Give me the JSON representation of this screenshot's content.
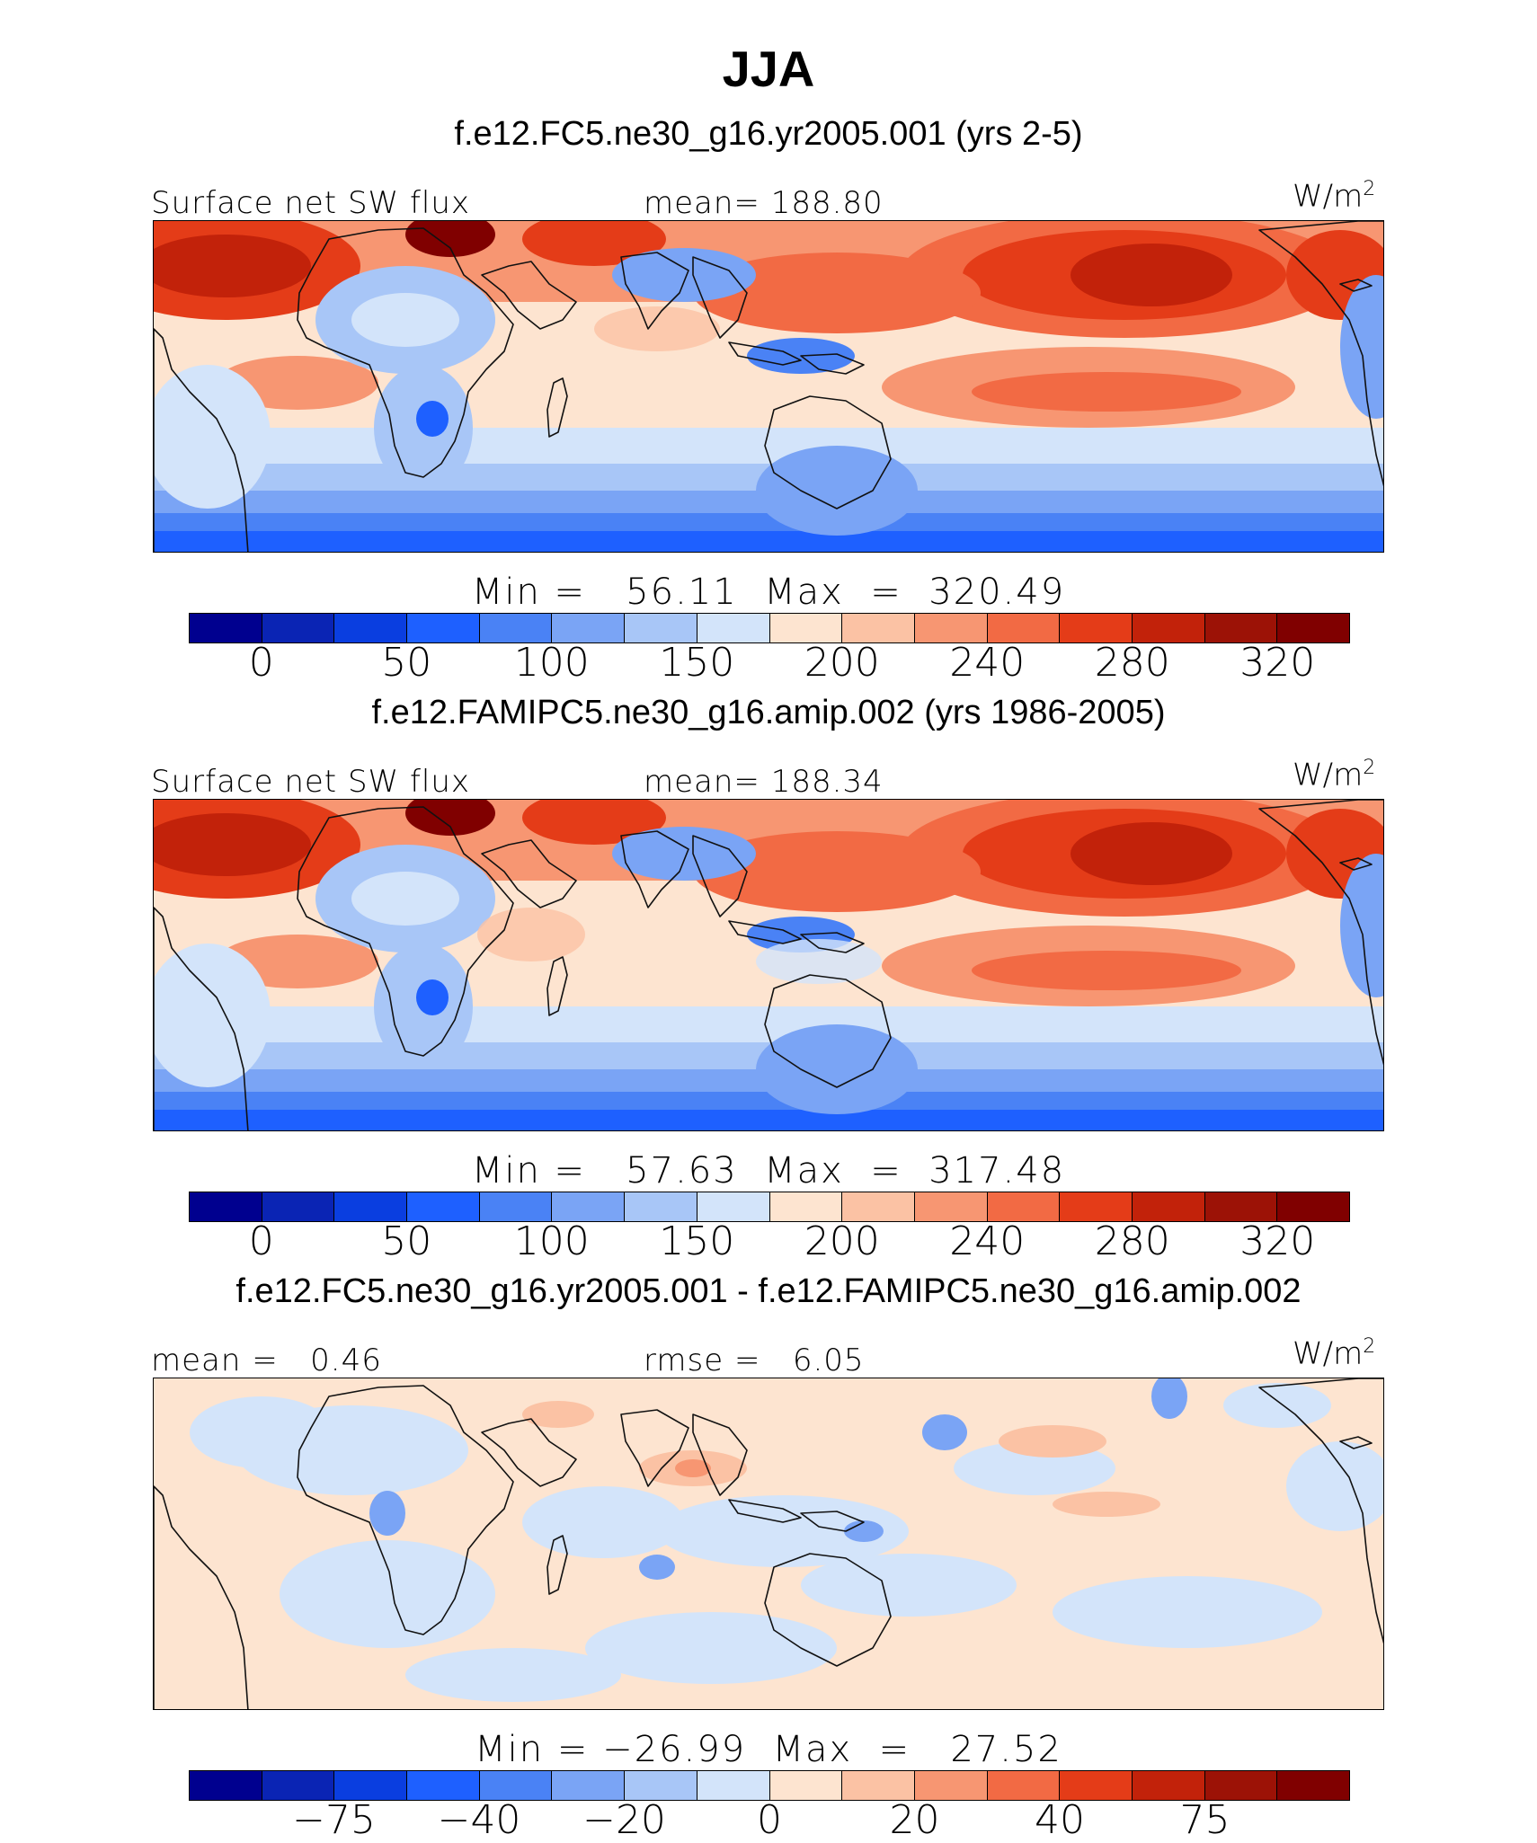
{
  "title": "JJA",
  "units_base": "W/m",
  "units_exp": "2",
  "panels": [
    {
      "subtitle": "f.e12.FC5.ne30_g16.yr2005.001 (yrs 2-5)",
      "left_label": "Surface net SW flux",
      "center_label": "mean= 188.80",
      "minmax": "Min =   56.11  Max  =  320.49",
      "ticks": [
        "0",
        "50",
        "100",
        "150",
        "200",
        "240",
        "280",
        "320"
      ],
      "field": "abs-a"
    },
    {
      "subtitle": "f.e12.FAMIPC5.ne30_g16.amip.002 (yrs 1986-2005)",
      "left_label": "Surface net SW flux",
      "center_label": "mean= 188.34",
      "minmax": "Min =   57.63  Max  =  317.48",
      "ticks": [
        "0",
        "50",
        "100",
        "150",
        "200",
        "240",
        "280",
        "320"
      ],
      "field": "abs-b"
    },
    {
      "subtitle": "f.e12.FC5.ne30_g16.yr2005.001 - f.e12.FAMIPC5.ne30_g16.amip.002",
      "left_label": "mean =   0.46",
      "center_label": "rmse =   6.05",
      "minmax": "Min = −26.99  Max  =   27.52",
      "ticks": [
        "−75",
        "−40",
        "−20",
        "0",
        "20",
        "40",
        "75"
      ],
      "field": "diff"
    }
  ],
  "colors": {
    "colorbar": [
      "#00008f",
      "#0a24b4",
      "#0a3ee0",
      "#1e60ff",
      "#4a82f5",
      "#7aa4f5",
      "#a8c6f7",
      "#d3e4fa",
      "#fde4d0",
      "#fbc2a4",
      "#f79672",
      "#f26a44",
      "#e43c18",
      "#c2220a",
      "#9c1206",
      "#800000"
    ]
  }
}
